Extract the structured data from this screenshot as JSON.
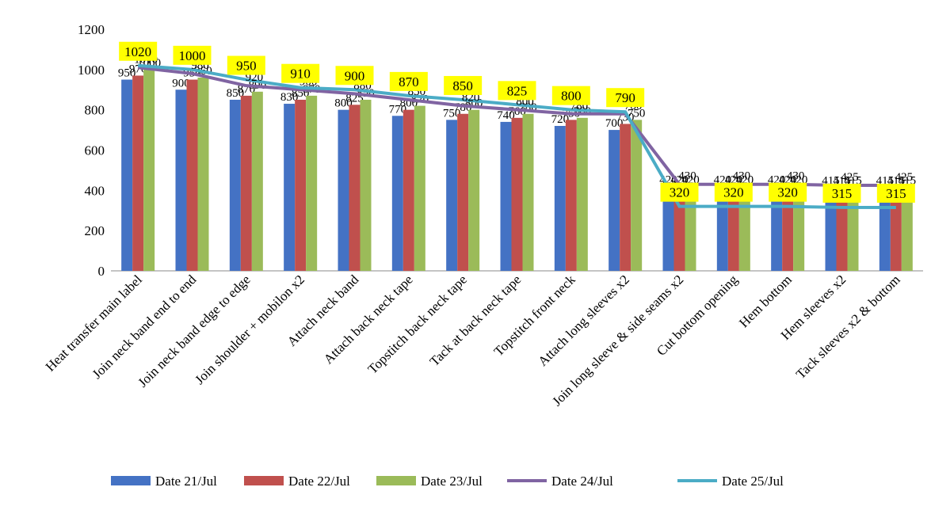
{
  "chart_data": {
    "type": "bar",
    "categories": [
      "Heat transfer main label",
      "Join neck band end to end",
      "Join neck band edge to edge",
      "Join shoulder + mobilon x2",
      "Attach neck band",
      "Attach back neck tape",
      "Topstitch back neck tape",
      "Tack at back neck tape",
      "Topstitch front neck",
      "Attach long sleeves x2",
      "Join long sleeve & side seams x2",
      "Cut bottom opening",
      "Hem bottom",
      "Hem sleeves x2",
      "Tack sleeves x2 & bottom"
    ],
    "series": [
      {
        "name": "Date 21/Jul",
        "color": "#4472c4",
        "kind": "bar",
        "values": [
          950,
          900,
          850,
          830,
          800,
          770,
          750,
          740,
          720,
          700,
          420,
          420,
          420,
          415,
          415
        ]
      },
      {
        "name": "Date 22/Jul",
        "color": "#c0504d",
        "kind": "bar",
        "values": [
          970,
          950,
          870,
          850,
          825,
          800,
          780,
          760,
          750,
          730,
          420,
          420,
          420,
          415,
          415
        ]
      },
      {
        "name": "Date 23/Jul",
        "color": "#9bbb59",
        "kind": "bar",
        "values": [
          1000,
          960,
          890,
          870,
          850,
          820,
          800,
          780,
          760,
          750,
          420,
          420,
          420,
          415,
          415
        ]
      },
      {
        "name": "Date 24/Jul",
        "color": "#8064a2",
        "kind": "line",
        "values": [
          1010,
          980,
          920,
          900,
          880,
          850,
          820,
          800,
          780,
          780,
          430,
          430,
          430,
          425,
          425
        ]
      },
      {
        "name": "Date 25/Jul",
        "color": "#4bacc6",
        "kind": "line",
        "values": [
          1020,
          1000,
          950,
          910,
          900,
          870,
          850,
          825,
          800,
          790,
          320,
          320,
          320,
          315,
          315
        ]
      }
    ],
    "ylim": [
      0,
      1200
    ],
    "yticks": [
      0,
      200,
      400,
      600,
      800,
      1000,
      1200
    ],
    "grid": false
  }
}
